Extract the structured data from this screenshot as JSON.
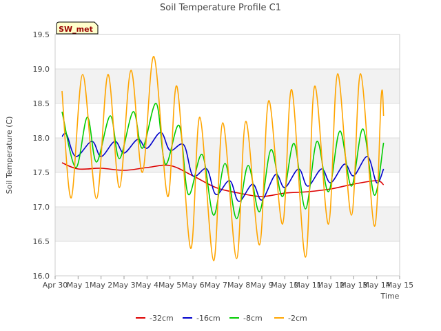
{
  "chart_data": {
    "type": "line",
    "title": "Soil Temperature Profile C1",
    "xlabel": "Time",
    "ylabel": "Soil Temperature (C)",
    "station_badge": "SW_met",
    "xlim": [
      0,
      15
    ],
    "ylim": [
      16.0,
      19.5
    ],
    "y_ticks": [
      16.0,
      16.5,
      17.0,
      17.5,
      18.0,
      18.5,
      19.0,
      19.5
    ],
    "y_tick_labels": [
      "16.0",
      "16.5",
      "17.0",
      "17.5",
      "18.0",
      "18.5",
      "19.0",
      "19.5"
    ],
    "x_ticks": [
      0,
      1,
      2,
      3,
      4,
      5,
      6,
      7,
      8,
      9,
      10,
      11,
      12,
      13,
      14,
      15
    ],
    "x_tick_labels": [
      "Apr 30",
      "May 1",
      "May 2",
      "May 3",
      "May 4",
      "May 5",
      "May 6",
      "May 7",
      "May 8",
      "May 9",
      "May 10",
      "May 11",
      "May 12",
      "May 13",
      "May 14",
      "May 15"
    ],
    "grid": true,
    "legend_position": "bottom-center",
    "series": [
      {
        "name": "-32cm",
        "color": "#dd0000",
        "x": [
          0.3,
          1,
          2,
          3,
          4,
          5,
          6,
          7,
          8,
          9,
          10,
          11,
          12,
          13,
          14,
          14.3
        ],
        "y": [
          17.64,
          17.55,
          17.56,
          17.53,
          17.57,
          17.6,
          17.45,
          17.28,
          17.2,
          17.15,
          17.2,
          17.22,
          17.26,
          17.33,
          17.38,
          17.32
        ]
      },
      {
        "name": "-16cm",
        "color": "#0000cc",
        "x": [
          0.3,
          0.5,
          0.9,
          1.6,
          2.0,
          2.6,
          3.0,
          3.6,
          4.0,
          4.6,
          5.0,
          5.6,
          6.0,
          6.6,
          7.0,
          7.6,
          8.0,
          8.6,
          9.0,
          9.6,
          10.0,
          10.6,
          11.0,
          11.6,
          12.0,
          12.6,
          13.0,
          13.6,
          14.0,
          14.3
        ],
        "y": [
          18.02,
          18.05,
          17.73,
          17.95,
          17.73,
          17.95,
          17.78,
          17.98,
          17.85,
          18.08,
          17.82,
          17.9,
          17.45,
          17.55,
          17.18,
          17.38,
          17.08,
          17.33,
          17.1,
          17.47,
          17.28,
          17.55,
          17.3,
          17.55,
          17.35,
          17.62,
          17.45,
          17.73,
          17.35,
          17.55
        ]
      },
      {
        "name": "-8cm",
        "color": "#00cc00",
        "x": [
          0.3,
          0.9,
          1.4,
          1.8,
          2.4,
          2.8,
          3.4,
          3.8,
          4.4,
          4.8,
          5.4,
          5.8,
          6.4,
          6.9,
          7.4,
          7.9,
          8.4,
          8.9,
          9.4,
          9.9,
          10.4,
          10.9,
          11.4,
          11.9,
          12.4,
          12.9,
          13.4,
          13.9,
          14.3
        ],
        "y": [
          18.38,
          17.57,
          18.3,
          17.65,
          18.32,
          17.7,
          18.38,
          17.85,
          18.5,
          17.62,
          18.18,
          17.18,
          17.76,
          16.88,
          17.63,
          16.83,
          17.6,
          16.93,
          17.83,
          17.15,
          17.92,
          16.97,
          17.95,
          17.22,
          18.1,
          17.3,
          18.13,
          17.17,
          17.93
        ]
      },
      {
        "name": "-2cm",
        "color": "#ffa500",
        "x": [
          0.3,
          0.7,
          1.2,
          1.8,
          2.3,
          2.8,
          3.3,
          3.8,
          4.3,
          4.9,
          5.3,
          5.9,
          6.3,
          6.9,
          7.3,
          7.9,
          8.3,
          8.9,
          9.3,
          9.9,
          10.3,
          10.9,
          11.3,
          11.9,
          12.3,
          12.9,
          13.3,
          13.9,
          14.2,
          14.3
        ],
        "y": [
          18.68,
          17.13,
          18.92,
          17.12,
          18.92,
          17.28,
          18.98,
          17.5,
          19.18,
          17.15,
          18.75,
          16.4,
          18.3,
          16.22,
          18.22,
          16.25,
          18.24,
          16.45,
          18.54,
          16.75,
          18.7,
          16.27,
          18.75,
          16.75,
          18.93,
          16.88,
          18.93,
          16.72,
          18.62,
          18.32
        ]
      }
    ]
  }
}
